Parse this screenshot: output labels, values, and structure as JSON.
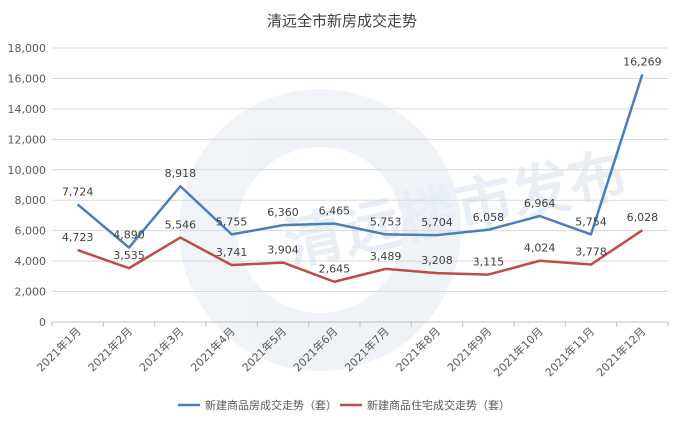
{
  "chart_data": {
    "type": "line",
    "title": "清远全市新房成交走势",
    "xlabel": "",
    "ylabel": "",
    "categories": [
      "2021年1月",
      "2021年2月",
      "2021年3月",
      "2021年4月",
      "2021年5月",
      "2021年6月",
      "2021年7月",
      "2021年8月",
      "2021年9月",
      "2021年10月",
      "2021年11月",
      "2021年12月"
    ],
    "ylim": [
      0,
      18000
    ],
    "yticks": [
      "0",
      "2,000",
      "4,000",
      "6,000",
      "8,000",
      "10,000",
      "12,000",
      "14,000",
      "16,000",
      "18,000"
    ],
    "grid": true,
    "legend_position": "bottom",
    "watermark": "清远楼市发布",
    "series": [
      {
        "name": "新建商品房成交走势（套）",
        "color": "#4a7ebb",
        "values": [
          7724,
          4890,
          8918,
          5755,
          6360,
          6465,
          5753,
          5704,
          6058,
          6964,
          5754,
          16269
        ],
        "labels": [
          "7,724",
          "4,890",
          "8,918",
          "5,755",
          "6,360",
          "6,465",
          "5,753",
          "5,704",
          "6,058",
          "6,964",
          "5,754",
          "16,269"
        ]
      },
      {
        "name": "新建商品住宅成交走势（套）",
        "color": "#be4b48",
        "values": [
          4723,
          3535,
          5546,
          3741,
          3904,
          2645,
          3489,
          3208,
          3115,
          4024,
          3778,
          6028
        ],
        "labels": [
          "4,723",
          "3,535",
          "5,546",
          "3,741",
          "3,904",
          "2,645",
          "3,489",
          "3,208",
          "3,115",
          "4,024",
          "3,778",
          "6,028"
        ]
      }
    ]
  }
}
